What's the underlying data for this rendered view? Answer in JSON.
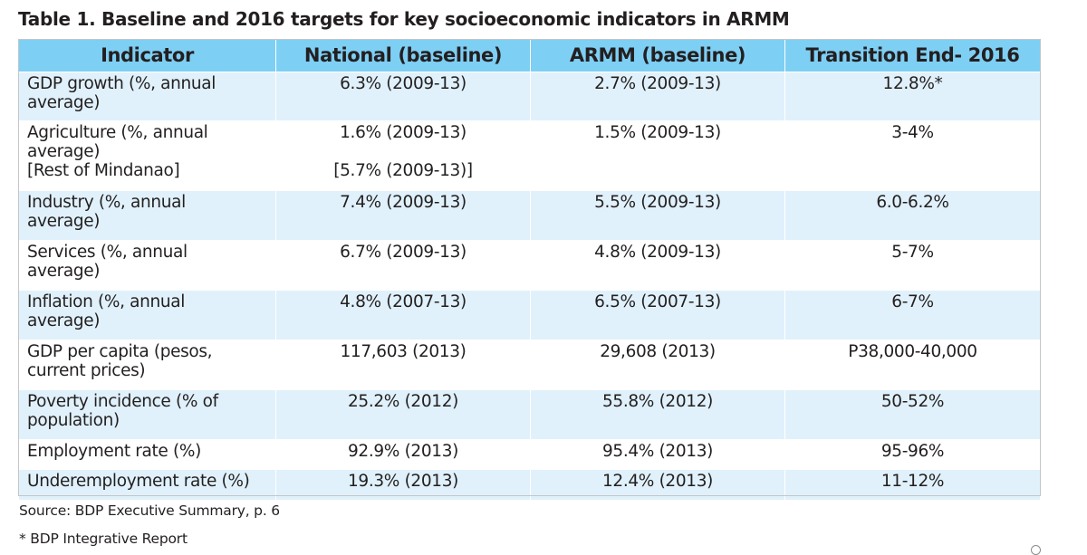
{
  "title": "Table 1. Baseline and 2016 targets for key socioeconomic indicators in ARMM",
  "table": {
    "headers": [
      "Indicator",
      "National (baseline)",
      "ARMM (baseline)",
      "Transition End- 2016"
    ],
    "rows": [
      {
        "indicator_l1": "GDP growth (%, annual",
        "indicator_l2": "average)",
        "national": "6.3% (2009-13)",
        "armm": "2.7% (2009-13)",
        "target": "12.8%*"
      },
      {
        "indicator_l1": "Agriculture (%, annual",
        "indicator_l2": "average)",
        "indicator_l3": "[Rest of Mindanao]",
        "national": "1.6% (2009-13)",
        "national_l2": "[5.7% (2009-13)]",
        "armm": "1.5% (2009-13)",
        "target": "3-4%"
      },
      {
        "indicator_l1": "Industry (%, annual",
        "indicator_l2": "average)",
        "national": "7.4% (2009-13)",
        "armm": "5.5% (2009-13)",
        "target": "6.0-6.2%"
      },
      {
        "indicator_l1": "Services (%, annual",
        "indicator_l2": "average)",
        "national": "6.7% (2009-13)",
        "armm": "4.8% (2009-13)",
        "target": "5-7%"
      },
      {
        "indicator_l1": "Inflation (%, annual",
        "indicator_l2": "average)",
        "national": "4.8% (2007-13)",
        "armm": "6.5% (2007-13)",
        "target": "6-7%"
      },
      {
        "indicator_l1": "GDP per capita (pesos,",
        "indicator_l2": "current prices)",
        "national": "117,603 (2013)",
        "armm": "29,608 (2013)",
        "target": "P38,000-40,000"
      },
      {
        "indicator_l1": "Poverty incidence (% of",
        "indicator_l2": "population)",
        "national": "25.2% (2012)",
        "armm": "55.8% (2012)",
        "target": "50-52%"
      },
      {
        "indicator_l1": "Employment rate (%)",
        "national": "92.9% (2013)",
        "armm": "95.4% (2013)",
        "target": "95-96%"
      },
      {
        "indicator_l1": "Underemployment rate (%)",
        "national": "19.3% (2013)",
        "armm": "12.4% (2013)",
        "target": "11-12%"
      }
    ]
  },
  "source_note": "Source: BDP Executive Summary, p. 6",
  "footnote": "* BDP Integrative Report",
  "colors": {
    "header_fill": "#7ecff4",
    "band_fill": "#e0f1fb",
    "text": "#231f20",
    "border": "#c4c6c8"
  }
}
